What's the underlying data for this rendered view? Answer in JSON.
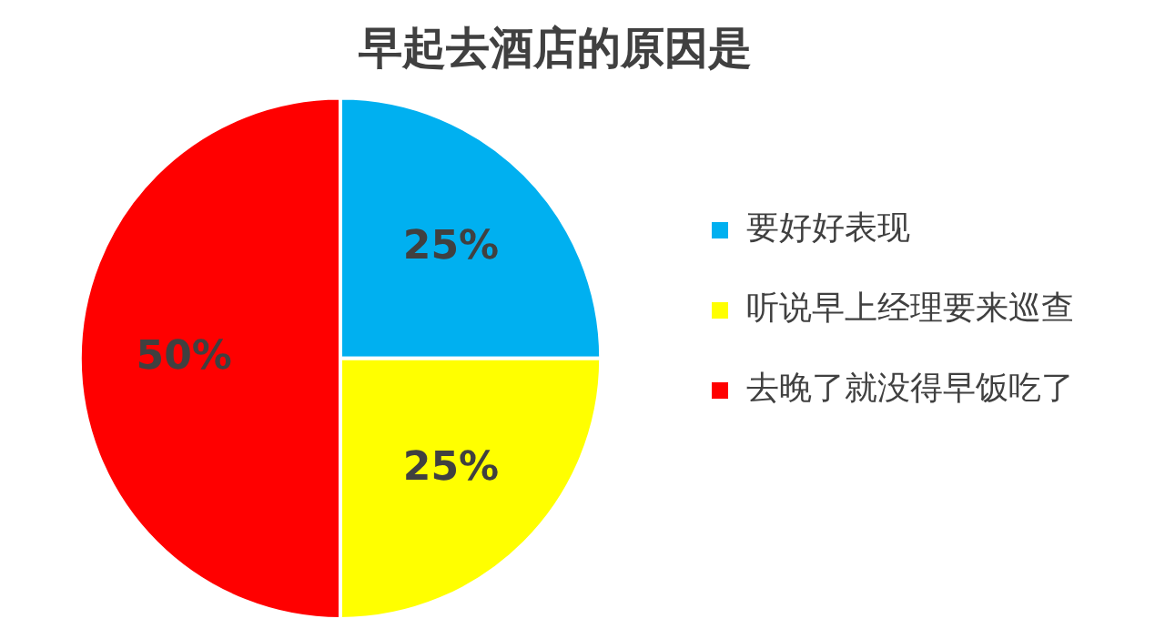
{
  "chart_data": {
    "type": "pie",
    "title": "早起去酒店的原因是",
    "categories": [
      "要好好表现",
      "听说早上经理要来巡查",
      "去晚了就没得早饭吃了"
    ],
    "values": [
      25,
      25,
      50
    ],
    "colors": [
      "#00b0f0",
      "#ffff00",
      "#ff0000"
    ],
    "value_labels": [
      "25%",
      "25%",
      "50%"
    ],
    "legend": "right"
  }
}
